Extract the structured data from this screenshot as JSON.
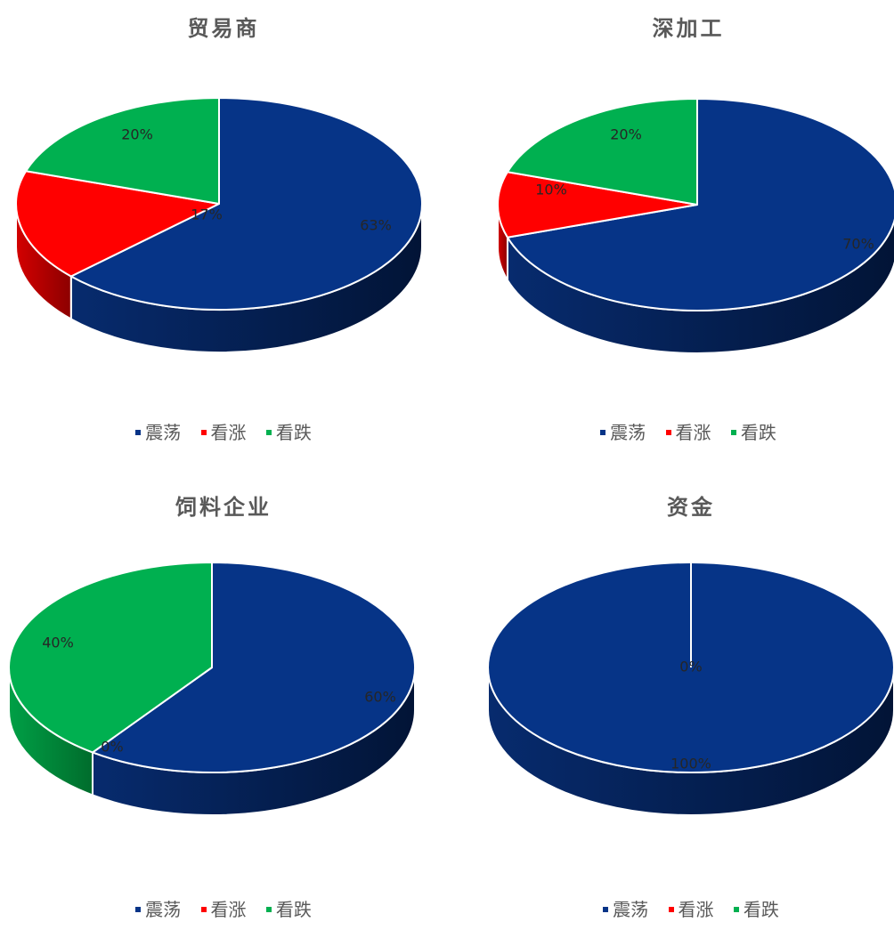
{
  "colors": {
    "震荡": "#063487",
    "看涨": "#ff0000",
    "看跌": "#00b050"
  },
  "legend": [
    "震荡",
    "看涨",
    "看跌"
  ],
  "chart_data": [
    {
      "type": "pie",
      "title": "贸易商",
      "categories": [
        "震荡",
        "看涨",
        "看跌"
      ],
      "values": [
        63,
        17,
        20
      ],
      "labels": [
        "63%",
        "17%",
        "20%"
      ]
    },
    {
      "type": "pie",
      "title": "深加工",
      "categories": [
        "震荡",
        "看涨",
        "看跌"
      ],
      "values": [
        70,
        10,
        20
      ],
      "labels": [
        "70%",
        "10%",
        "20%"
      ]
    },
    {
      "type": "pie",
      "title": "饲料企业",
      "categories": [
        "震荡",
        "看涨",
        "看跌"
      ],
      "values": [
        60,
        0,
        40
      ],
      "labels": [
        "60%",
        "0%",
        "40%"
      ]
    },
    {
      "type": "pie",
      "title": "资金",
      "categories": [
        "震荡",
        "看涨",
        "看跌"
      ],
      "values": [
        100,
        0,
        0
      ],
      "labels": [
        "100%",
        "0%",
        "0%"
      ]
    }
  ]
}
